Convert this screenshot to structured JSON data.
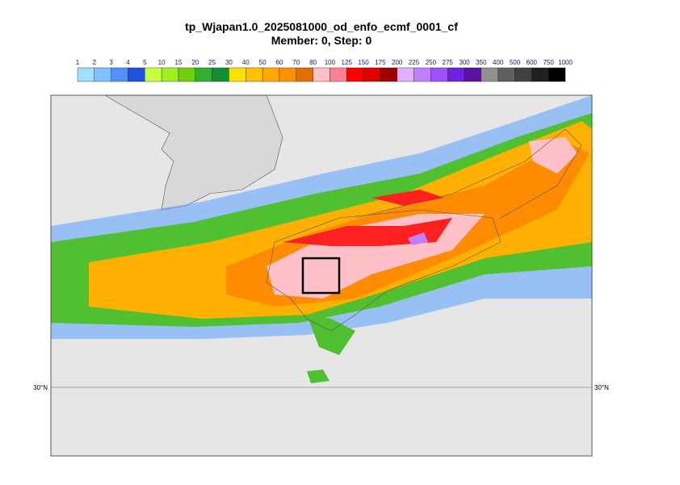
{
  "title": [
    "tp_Wjapan1.0_2025081000_od_enfo_ecmf_0001_cf",
    "Member: 0, Step: 0"
  ],
  "colorbar": {
    "labels": [
      1,
      2,
      3,
      4,
      5,
      10,
      15,
      20,
      25,
      30,
      40,
      50,
      60,
      70,
      80,
      100,
      125,
      150,
      175,
      200,
      225,
      250,
      275,
      300,
      350,
      400,
      500,
      600,
      750,
      1000
    ],
    "colors": [
      "#a0e0ff",
      "#80c0ff",
      "#5090ff",
      "#2050e0",
      "#c8ff40",
      "#a0f020",
      "#70d010",
      "#30b030",
      "#109030",
      "#ffe000",
      "#ffc000",
      "#ffa800",
      "#ff9000",
      "#e07000",
      "#ffc0c8",
      "#ff8090",
      "#ff0000",
      "#e00000",
      "#a00000",
      "#e0b0ff",
      "#c080ff",
      "#a050ff",
      "#7020e0",
      "#6010a0",
      "#909090",
      "#606060",
      "#404040",
      "#202020",
      "#000000"
    ]
  },
  "map": {
    "lat_labels": [
      "30°N",
      "30°N"
    ]
  }
}
